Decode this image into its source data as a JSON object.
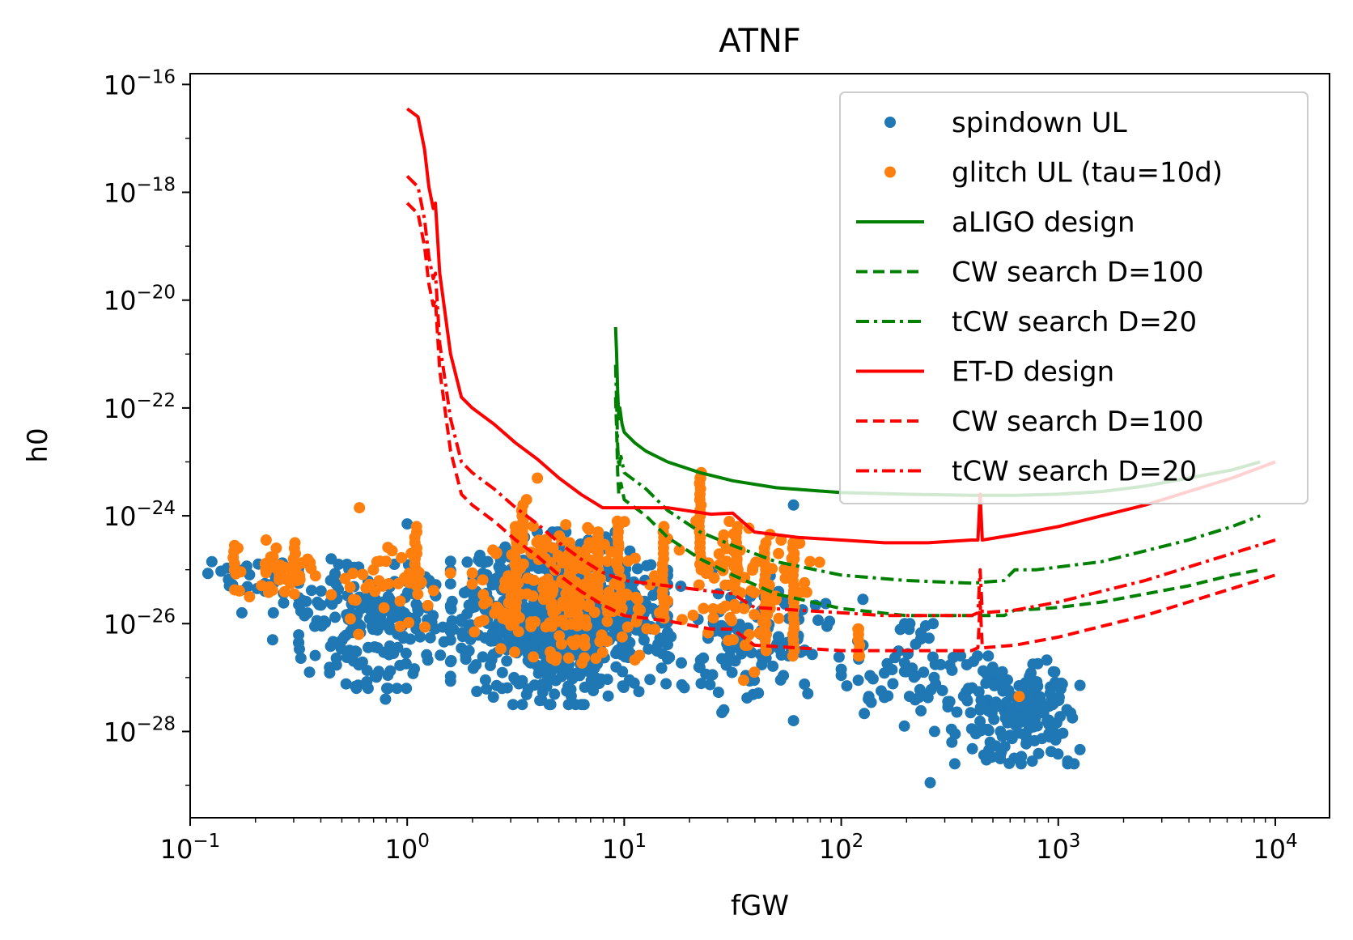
{
  "chart_data": {
    "type": "scatter",
    "title": "ATNF",
    "xlabel": "fGW",
    "ylabel": "h0",
    "xscale": "log",
    "yscale": "log",
    "xlim_log10": [
      -1,
      4.25
    ],
    "ylim_log10": [
      -29.6,
      -15.8
    ],
    "xticks": [
      {
        "exp": -1,
        "base": "10",
        "sup": "−1"
      },
      {
        "exp": 0,
        "base": "10",
        "sup": "0"
      },
      {
        "exp": 1,
        "base": "10",
        "sup": "1"
      },
      {
        "exp": 2,
        "base": "10",
        "sup": "2"
      },
      {
        "exp": 3,
        "base": "10",
        "sup": "3"
      },
      {
        "exp": 4,
        "base": "10",
        "sup": "4"
      }
    ],
    "yticks": [
      {
        "exp": -16,
        "base": "10",
        "sup": "−16"
      },
      {
        "exp": -18,
        "base": "10",
        "sup": "−18"
      },
      {
        "exp": -20,
        "base": "10",
        "sup": "−20"
      },
      {
        "exp": -22,
        "base": "10",
        "sup": "−22"
      },
      {
        "exp": -24,
        "base": "10",
        "sup": "−24"
      },
      {
        "exp": -26,
        "base": "10",
        "sup": "−26"
      },
      {
        "exp": -28,
        "base": "10",
        "sup": "−28"
      }
    ],
    "legend_position": "top-right",
    "series": [
      {
        "name": "spindown UL",
        "kind": "scatter",
        "color": "#1f77b4",
        "clusters": [
          {
            "x_log10": [
              -0.95,
              -0.5
            ],
            "y_log10": [
              -25.8,
              -24.5
            ],
            "n": 30
          },
          {
            "x_log10": [
              -0.5,
              0.2
            ],
            "y_log10": [
              -27.2,
              -24.9
            ],
            "n": 200
          },
          {
            "x_log10": [
              0.2,
              1.2
            ],
            "y_log10": [
              -27.5,
              -24.3
            ],
            "n": 700
          },
          {
            "x_log10": [
              1.2,
              2.0
            ],
            "y_log10": [
              -27.6,
              -25.0
            ],
            "n": 120
          },
          {
            "x_log10": [
              2.0,
              2.6
            ],
            "y_log10": [
              -28.0,
              -26.0
            ],
            "n": 60
          },
          {
            "x_log10": [
              2.5,
              3.1
            ],
            "y_log10": [
              -28.6,
              -26.6
            ],
            "n": 200
          }
        ],
        "points": [
          {
            "x": -0.9,
            "y": -24.85
          },
          {
            "x": -0.78,
            "y": -25.0
          },
          {
            "x": -0.35,
            "y": -24.8
          },
          {
            "x": 0.0,
            "y": -24.15
          },
          {
            "x": -0.62,
            "y": -26.3
          },
          {
            "x": -0.45,
            "y": -26.9
          },
          {
            "x": -0.1,
            "y": -27.4
          },
          {
            "x": 1.78,
            "y": -23.8
          },
          {
            "x": 2.1,
            "y": -25.55
          },
          {
            "x": 2.41,
            "y": -28.95
          },
          {
            "x": 2.51,
            "y": -28.2
          },
          {
            "x": 2.88,
            "y": -28.55
          },
          {
            "x": 2.55,
            "y": -26.6
          },
          {
            "x": 1.45,
            "y": -27.65
          },
          {
            "x": 1.78,
            "y": -27.8
          }
        ]
      },
      {
        "name": "glitch UL (tau=10d)",
        "kind": "scatter",
        "color": "#ff7f0e",
        "clusters": [
          {
            "x_log10": [
              -0.8,
              -0.4
            ],
            "y_log10": [
              -25.5,
              -24.6
            ],
            "n": 40
          },
          {
            "x_log10": [
              -0.35,
              0.3
            ],
            "y_log10": [
              -26.2,
              -24.3
            ],
            "n": 40
          },
          {
            "x_log10": [
              0.3,
              1.2
            ],
            "y_log10": [
              -26.8,
              -24.1
            ],
            "n": 220
          },
          {
            "x_log10": [
              1.2,
              1.9
            ],
            "y_log10": [
              -26.4,
              -24.1
            ],
            "n": 80
          }
        ],
        "points": [
          {
            "x": -0.78,
            "y": -24.6
          },
          {
            "x": -0.65,
            "y": -24.45
          },
          {
            "x": -0.22,
            "y": -23.85
          },
          {
            "x": 0.55,
            "y": -23.7
          },
          {
            "x": 0.6,
            "y": -23.3
          },
          {
            "x": 1.35,
            "y": -23.3
          },
          {
            "x": 2.08,
            "y": -26.1
          },
          {
            "x": 2.08,
            "y": -26.6
          },
          {
            "x": 1.55,
            "y": -27.05
          },
          {
            "x": 1.6,
            "y": -26.9
          },
          {
            "x": 2.82,
            "y": -27.35
          }
        ],
        "columns": [
          {
            "x": -0.8,
            "y_range": [
              -25.0,
              -24.55
            ]
          },
          {
            "x": -0.52,
            "y_range": [
              -25.1,
              -24.5
            ]
          },
          {
            "x": 0.04,
            "y_range": [
              -25.3,
              -24.2
            ]
          },
          {
            "x": 0.5,
            "y_range": [
              -25.8,
              -24.2
            ]
          },
          {
            "x": 0.53,
            "y_range": [
              -24.6,
              -23.8
            ]
          },
          {
            "x": 0.75,
            "y_range": [
              -25.8,
              -24.5
            ]
          },
          {
            "x": 0.88,
            "y_range": [
              -25.5,
              -24.3
            ]
          },
          {
            "x": 0.97,
            "y_range": [
              -25.0,
              -24.1
            ]
          },
          {
            "x": 1.18,
            "y_range": [
              -25.9,
              -24.2
            ]
          },
          {
            "x": 1.35,
            "y_range": [
              -25.0,
              -23.2
            ]
          },
          {
            "x": 1.52,
            "y_range": [
              -25.0,
              -24.2
            ]
          },
          {
            "x": 1.65,
            "y_range": [
              -26.5,
              -24.5
            ]
          },
          {
            "x": 1.78,
            "y_range": [
              -26.6,
              -24.5
            ]
          },
          {
            "x": 2.08,
            "y_range": [
              -26.6,
              -26.1
            ]
          }
        ]
      },
      {
        "name": "aLIGO design",
        "kind": "line",
        "color": "#008000",
        "dash": "solid",
        "x": [
          0.96,
          0.965,
          0.97,
          0.975,
          0.98,
          0.99,
          1.0,
          1.05,
          1.1,
          1.2,
          1.35,
          1.5,
          1.7,
          2.0,
          2.3,
          2.6,
          2.8,
          3.0,
          3.2,
          3.4,
          3.6,
          3.8,
          3.93
        ],
        "y": [
          -20.5,
          -21.0,
          -21.7,
          -22.2,
          -22.0,
          -22.3,
          -22.45,
          -22.65,
          -22.8,
          -23.0,
          -23.2,
          -23.35,
          -23.48,
          -23.57,
          -23.6,
          -23.62,
          -23.62,
          -23.6,
          -23.55,
          -23.45,
          -23.3,
          -23.15,
          -23.0
        ]
      },
      {
        "name": "CW search D=100",
        "kind": "line",
        "color": "#008000",
        "dash": "dashed",
        "x": [
          0.96,
          0.965,
          0.97,
          0.975,
          0.985,
          1.0,
          1.1,
          1.2,
          1.35,
          1.5,
          1.7,
          2.0,
          2.3,
          2.6,
          2.75,
          2.8,
          2.9,
          3.0,
          3.2,
          3.4,
          3.6,
          3.8,
          3.93
        ],
        "y": [
          -21.8,
          -22.4,
          -23.2,
          -23.6,
          -23.4,
          -23.7,
          -24.0,
          -24.4,
          -24.8,
          -25.1,
          -25.45,
          -25.72,
          -25.85,
          -25.85,
          -25.85,
          -25.75,
          -25.73,
          -25.7,
          -25.6,
          -25.45,
          -25.3,
          -25.1,
          -25.0
        ]
      },
      {
        "name": "tCW search D=20",
        "kind": "line",
        "color": "#008000",
        "dash": "dashdot",
        "x": [
          0.96,
          0.965,
          0.97,
          0.975,
          0.985,
          1.0,
          1.1,
          1.2,
          1.35,
          1.5,
          1.7,
          2.0,
          2.3,
          2.6,
          2.75,
          2.8,
          2.9,
          3.0,
          3.2,
          3.4,
          3.6,
          3.8,
          3.93
        ],
        "y": [
          -21.2,
          -21.9,
          -22.7,
          -23.1,
          -22.9,
          -23.2,
          -23.5,
          -23.9,
          -24.3,
          -24.55,
          -24.85,
          -25.1,
          -25.2,
          -25.25,
          -25.2,
          -25.0,
          -25.0,
          -24.95,
          -24.85,
          -24.65,
          -24.45,
          -24.2,
          -24.0
        ]
      },
      {
        "name": "ET-D design",
        "kind": "line",
        "color": "#ff0000",
        "dash": "solid",
        "x": [
          0.0,
          0.05,
          0.08,
          0.1,
          0.12,
          0.13,
          0.15,
          0.2,
          0.25,
          0.3,
          0.4,
          0.5,
          0.6,
          0.7,
          0.8,
          0.9,
          1.0,
          1.2,
          1.4,
          1.5,
          1.6,
          1.8,
          2.0,
          2.2,
          2.4,
          2.6,
          2.63,
          2.64,
          2.65,
          2.8,
          3.0,
          3.2,
          3.4,
          3.6,
          3.8,
          4.0
        ],
        "y": [
          -16.45,
          -16.6,
          -17.2,
          -17.9,
          -18.3,
          -18.2,
          -19.5,
          -21.0,
          -21.8,
          -22.0,
          -22.3,
          -22.65,
          -22.95,
          -23.3,
          -23.6,
          -23.85,
          -23.85,
          -23.85,
          -23.97,
          -23.95,
          -24.3,
          -24.4,
          -24.45,
          -24.5,
          -24.5,
          -24.45,
          -24.45,
          -23.6,
          -24.45,
          -24.35,
          -24.2,
          -24.0,
          -23.8,
          -23.55,
          -23.3,
          -23.0
        ]
      },
      {
        "name": "CW search D=100",
        "kind": "line",
        "color": "#ff0000",
        "dash": "dashed",
        "x": [
          0.0,
          0.05,
          0.08,
          0.1,
          0.12,
          0.13,
          0.15,
          0.2,
          0.25,
          0.3,
          0.4,
          0.5,
          0.6,
          0.7,
          0.8,
          0.9,
          1.0,
          1.2,
          1.4,
          1.5,
          1.6,
          1.8,
          2.0,
          2.2,
          2.4,
          2.6,
          2.63,
          2.64,
          2.65,
          2.8,
          3.0,
          3.2,
          3.4,
          3.6,
          3.8,
          4.0
        ],
        "y": [
          -18.2,
          -18.4,
          -19.0,
          -19.7,
          -20.1,
          -20.0,
          -21.3,
          -22.8,
          -23.6,
          -23.8,
          -24.1,
          -24.45,
          -24.75,
          -25.1,
          -25.4,
          -25.65,
          -25.85,
          -25.95,
          -26.1,
          -26.1,
          -26.4,
          -26.45,
          -26.5,
          -26.5,
          -26.5,
          -26.5,
          -26.45,
          -25.6,
          -26.45,
          -26.4,
          -26.25,
          -26.05,
          -25.85,
          -25.6,
          -25.35,
          -25.1
        ]
      },
      {
        "name": "tCW search D=20",
        "kind": "line",
        "color": "#ff0000",
        "dash": "dashdot",
        "x": [
          0.0,
          0.05,
          0.08,
          0.1,
          0.12,
          0.13,
          0.15,
          0.2,
          0.25,
          0.3,
          0.4,
          0.5,
          0.6,
          0.7,
          0.8,
          0.9,
          1.0,
          1.2,
          1.4,
          1.5,
          1.6,
          1.8,
          2.0,
          2.2,
          2.4,
          2.6,
          2.63,
          2.64,
          2.65,
          2.8,
          3.0,
          3.2,
          3.4,
          3.6,
          3.8,
          4.0
        ],
        "y": [
          -17.7,
          -17.9,
          -18.5,
          -19.2,
          -19.6,
          -19.5,
          -20.8,
          -22.2,
          -23.0,
          -23.2,
          -23.5,
          -23.85,
          -24.15,
          -24.5,
          -24.8,
          -25.05,
          -25.2,
          -25.3,
          -25.4,
          -25.45,
          -25.7,
          -25.75,
          -25.8,
          -25.85,
          -25.85,
          -25.85,
          -25.8,
          -25.0,
          -25.8,
          -25.75,
          -25.6,
          -25.4,
          -25.2,
          -24.95,
          -24.7,
          -24.45
        ]
      }
    ],
    "legend": [
      {
        "label": "spindown UL",
        "marker": "dot",
        "color": "#1f77b4"
      },
      {
        "label": "glitch UL (tau=10d)",
        "marker": "dot",
        "color": "#ff7f0e"
      },
      {
        "label": "aLIGO design",
        "marker": "solid",
        "color": "#008000"
      },
      {
        "label": "   CW search D=100",
        "marker": "dashed",
        "color": "#008000"
      },
      {
        "label": "   tCW search D=20",
        "marker": "dashdot",
        "color": "#008000"
      },
      {
        "label": "ET-D design",
        "marker": "solid",
        "color": "#ff0000"
      },
      {
        "label": "   CW search D=100",
        "marker": "dashed",
        "color": "#ff0000"
      },
      {
        "label": "   tCW search D=20",
        "marker": "dashdot",
        "color": "#ff0000"
      }
    ]
  }
}
